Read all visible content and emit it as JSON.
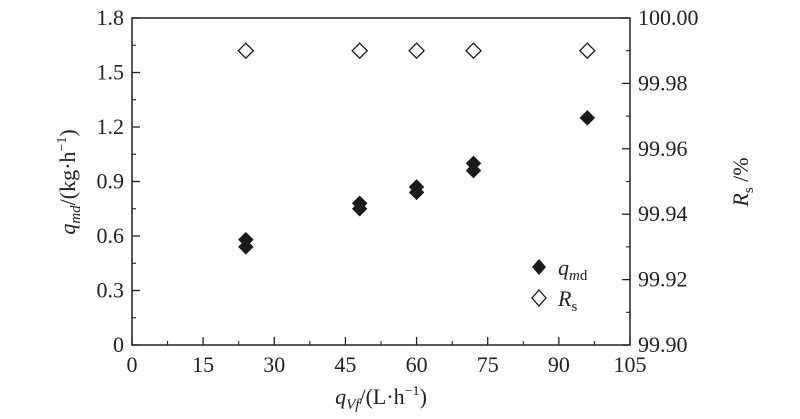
{
  "chart_data": {
    "type": "scatter",
    "xlabel": "q_Vf/(L·h⁻¹)",
    "ylabel_left": "q_md/(kg·h⁻¹)",
    "ylabel_right": "R_s/%",
    "xlim": [
      0,
      105
    ],
    "ylim_left": [
      0,
      1.8
    ],
    "ylim_right": [
      99.9,
      100.0
    ],
    "x_ticks": [
      "0",
      "15",
      "30",
      "45",
      "60",
      "75",
      "90",
      "105"
    ],
    "y_left_ticks": [
      "0",
      "0.3",
      "0.6",
      "0.9",
      "1.2",
      "1.5",
      "1.8"
    ],
    "y_right_ticks": [
      "99.90",
      "99.92",
      "99.94",
      "99.96",
      "99.98",
      "100.00"
    ],
    "legend_position": "bottom-right",
    "series": [
      {
        "name": "q_md",
        "marker": "filled-diamond",
        "axis": "left",
        "color": "#1a1a1a",
        "points": [
          {
            "x": 24,
            "y": 0.58
          },
          {
            "x": 24,
            "y": 0.54
          },
          {
            "x": 48,
            "y": 0.78
          },
          {
            "x": 48,
            "y": 0.75
          },
          {
            "x": 60,
            "y": 0.87
          },
          {
            "x": 60,
            "y": 0.84
          },
          {
            "x": 72,
            "y": 1.0
          },
          {
            "x": 72,
            "y": 0.96
          },
          {
            "x": 96,
            "y": 1.25
          }
        ]
      },
      {
        "name": "R_s",
        "marker": "open-diamond",
        "axis": "right",
        "color": "#1a1a1a",
        "points": [
          {
            "x": 24,
            "y": 99.99
          },
          {
            "x": 48,
            "y": 99.99
          },
          {
            "x": 60,
            "y": 99.99
          },
          {
            "x": 72,
            "y": 99.99
          },
          {
            "x": 96,
            "y": 99.99
          }
        ]
      }
    ]
  }
}
